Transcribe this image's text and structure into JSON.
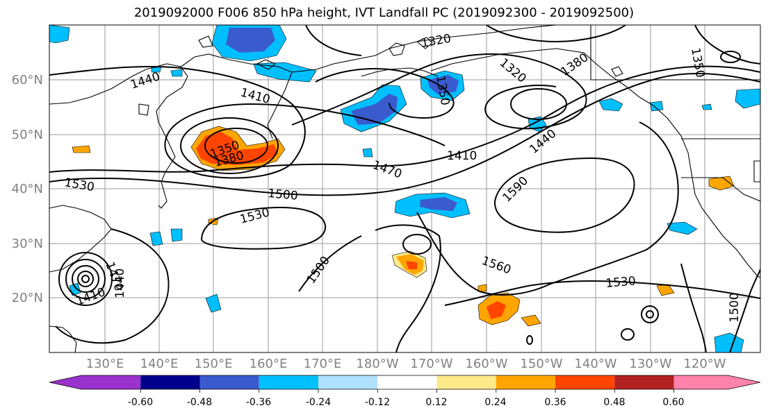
{
  "title": "2019092000 F006 850 hPa height, IVT Landfall PC (2019092300 - 2019092500)",
  "map": {
    "lon_ticks": [
      "130°E",
      "140°E",
      "150°E",
      "160°E",
      "170°E",
      "180°W",
      "170°W",
      "160°W",
      "150°W",
      "140°W",
      "130°W",
      "120°W"
    ],
    "lat_ticks": [
      "60°N",
      "50°N",
      "40°N",
      "30°N",
      "20°N"
    ],
    "contour_labels": [
      "1440",
      "1410",
      "1350",
      "1380",
      "1320",
      "1380",
      "1350",
      "1320",
      "1350",
      "1410",
      "1440",
      "1470",
      "1530",
      "1500",
      "1530",
      "1590",
      "1560",
      "1530",
      "1500",
      "1500",
      "1410",
      "1440",
      "1470"
    ]
  },
  "colorbar": {
    "colors": [
      "#9932cc",
      "#00008b",
      "#3a5bcd",
      "#00bfff",
      "#b0e2ff",
      "#ffffff",
      "#ffffff",
      "#fce98a",
      "#ffa500",
      "#ff4500",
      "#b22222",
      "#ff82ab"
    ],
    "tick_labels": [
      "-0.60",
      "-0.48",
      "-0.36",
      "-0.24",
      "-0.12",
      "0.12",
      "0.24",
      "0.36",
      "0.48",
      "0.60"
    ]
  }
}
